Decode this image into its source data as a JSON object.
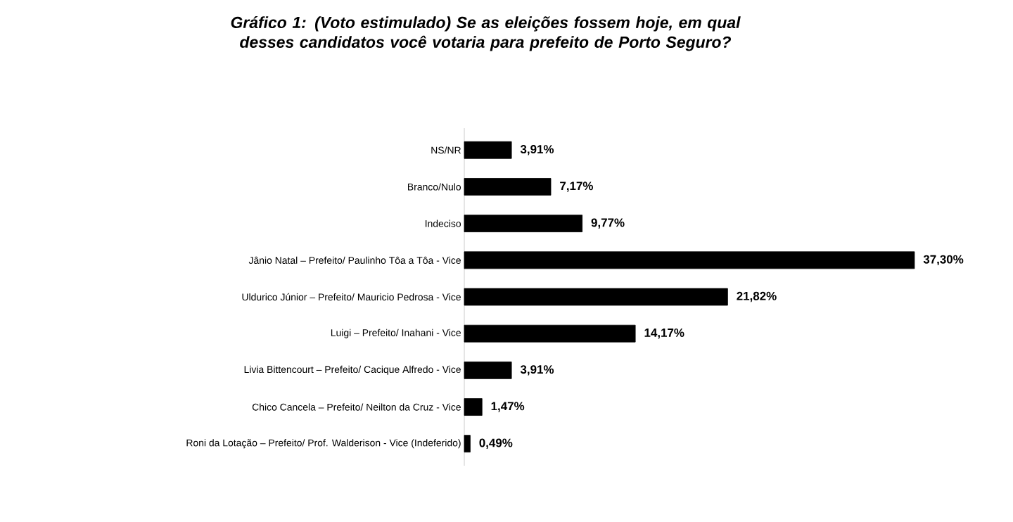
{
  "chart_data": {
    "type": "bar",
    "orientation": "horizontal",
    "title": "Gráfico 1: (Voto estimulado) Se as eleições fossem hoje, em qual desses candidatos você votaria para prefeito de Porto Seguro?",
    "categories": [
      "NS/NR",
      "Branco/Nulo",
      "Indeciso",
      "Jânio Natal – Prefeito/ Paulinho Tôa a Tôa - Vice",
      "Uldurico Júnior – Prefeito/ Mauricio Pedrosa - Vice",
      "Luigi – Prefeito/ Inahani - Vice",
      "Livia Bittencourt – Prefeito/ Cacique Alfredo - Vice",
      "Chico Cancela – Prefeito/ Neilton da Cruz - Vice",
      "Roni da Lotação – Prefeito/ Prof. Walderison - Vice (Indeferido)"
    ],
    "values": [
      3.91,
      7.17,
      9.77,
      37.3,
      21.82,
      14.17,
      3.91,
      1.47,
      0.49
    ],
    "value_labels": [
      "3,91%",
      "7,17%",
      "9,77%",
      "37,30%",
      "21,82%",
      "14,17%",
      "3,91%",
      "1,47%",
      "0,49%"
    ],
    "color": "#000000"
  }
}
